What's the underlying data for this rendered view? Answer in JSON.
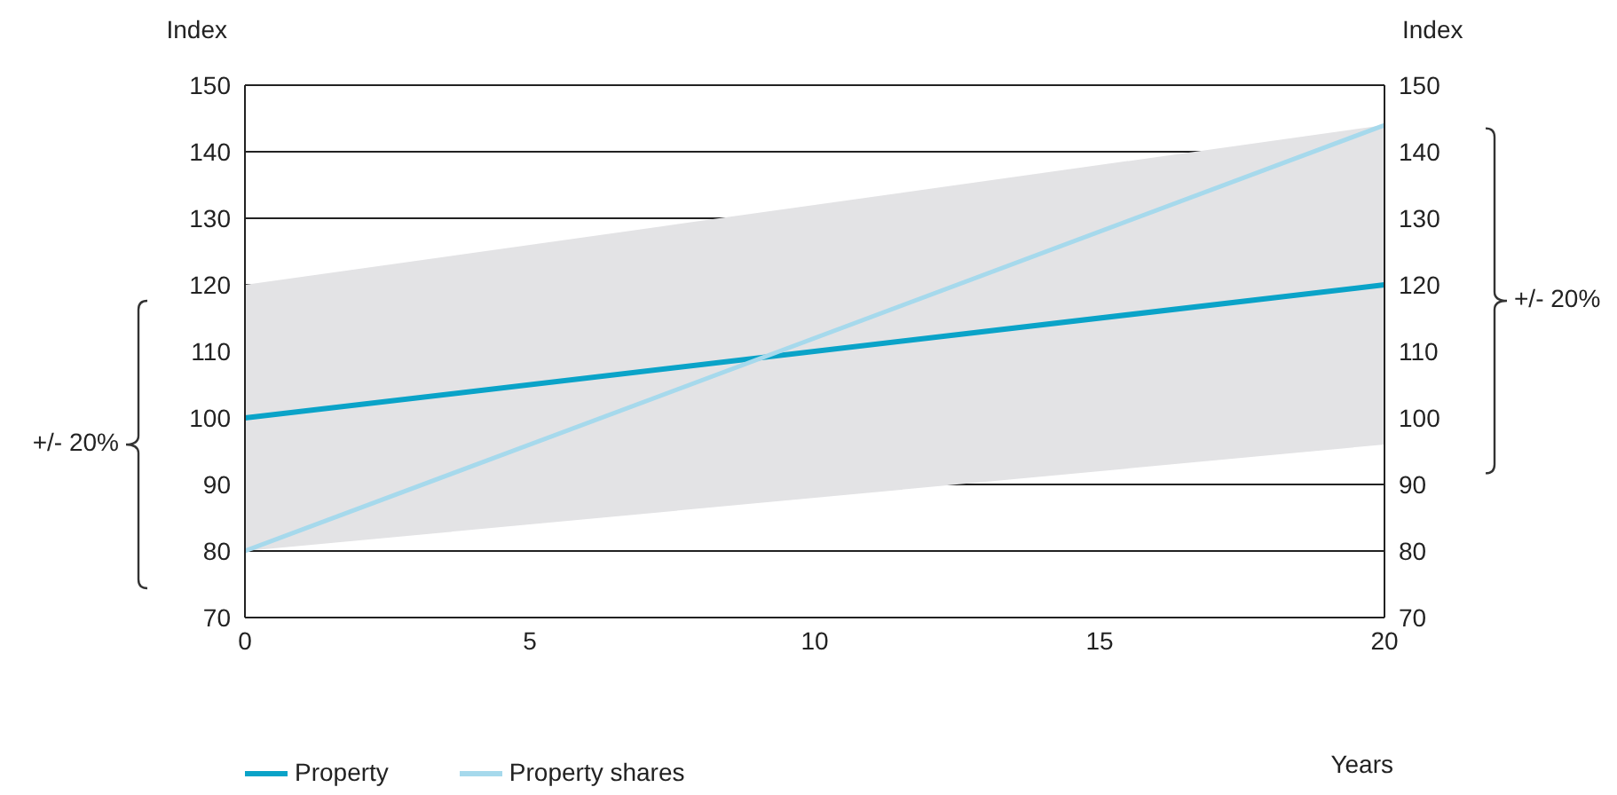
{
  "chart_data": {
    "type": "line",
    "xlabel": "Years",
    "ylabel": "Index",
    "y2label": "Index",
    "x": [
      0,
      20
    ],
    "series": [
      {
        "name": "Property",
        "color": "#0aa3c8",
        "values": [
          100,
          120
        ],
        "lower": [
          80,
          96
        ],
        "upper": [
          120,
          144
        ]
      },
      {
        "name": "Property shares",
        "color": "#a6d9ec",
        "values": [
          80,
          144
        ]
      }
    ],
    "xlim": [
      0,
      20
    ],
    "xticks": [
      0,
      5,
      10,
      15,
      20
    ],
    "ylim": [
      70,
      150
    ],
    "yticks": [
      70,
      80,
      90,
      100,
      110,
      120,
      130,
      140,
      150
    ],
    "y2lim": [
      70,
      150
    ],
    "y2ticks": [
      70,
      80,
      90,
      100,
      110,
      120,
      130,
      140,
      150
    ],
    "grid": "y",
    "legend": "bottom left",
    "marker": "none",
    "line_style": "solid",
    "annotations": [
      "+/- 20%",
      "+/- 20%"
    ]
  }
}
